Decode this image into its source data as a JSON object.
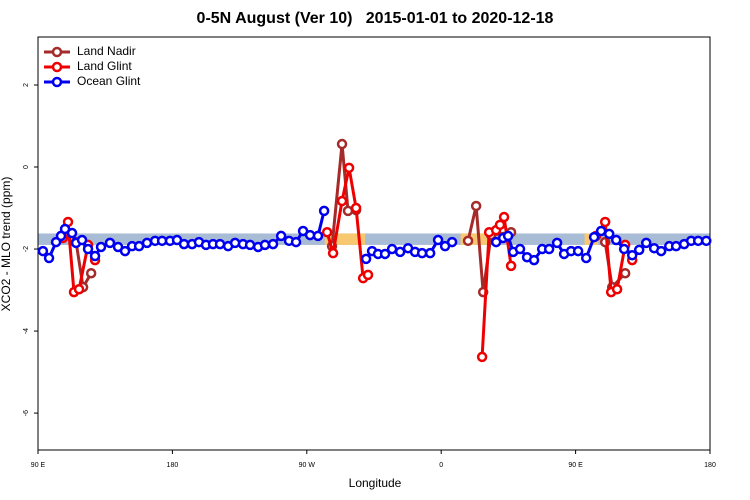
{
  "chart_data": {
    "type": "line",
    "title": "0-5N August (Ver 10)   2015-01-01 to 2020-12-18",
    "x_label": "Longitude",
    "y_label": "XCO2 - MLO trend (ppm)",
    "xlim": [
      90,
      540
    ],
    "xticks": [
      {
        "value": 90,
        "label": "90 E"
      },
      180,
      {
        "value": 270,
        "label": "90 W"
      },
      {
        "value": 360,
        "label": "0"
      },
      {
        "value": 450,
        "label": "90 E"
      },
      {
        "value": 540,
        "label": "180"
      }
    ],
    "ylim": [
      -6.9,
      3.17
    ],
    "yticks": [
      -6,
      -4,
      -2,
      0,
      2
    ],
    "legend": "top-left",
    "bands": [
      {
        "color": "#a9bcd6",
        "x": [
          90,
          540
        ],
        "y": [
          -1.9,
          -1.62
        ]
      },
      {
        "color": "#f7c870",
        "x": [
          282,
          309
        ],
        "y": [
          -1.9,
          -1.62
        ]
      },
      {
        "color": "#f7c870",
        "x": [
          373,
          393
        ],
        "y": [
          -1.9,
          -1.62
        ]
      },
      {
        "color": "#f7c870",
        "x": [
          456,
          465
        ],
        "y": [
          -1.9,
          -1.62
        ]
      }
    ],
    "series": [
      {
        "name": "Land Nadir",
        "color": "#a52a2a",
        "x": [
          115.5,
          120.2,
          125.6,
          null,
          286.9,
          293.6,
          297.6,
          303.0,
          null,
          378.0,
          383.4,
          388.1,
          393.4,
          406.8,
          null,
          469.8,
          474.5,
          483.2
        ],
        "values": [
          -1.83,
          -2.93,
          -2.59,
          null,
          -1.93,
          0.56,
          -1.07,
          -1.05,
          null,
          -1.8,
          -0.95,
          -3.05,
          -1.66,
          -1.59,
          null,
          -1.83,
          -2.93,
          -2.59
        ]
      },
      {
        "name": "Land Glint",
        "color": "#ee0000",
        "x": [
          106.7,
          110.1,
          114.1,
          117.5,
          123.5,
          128.2,
          null,
          283.6,
          287.6,
          293.6,
          298.3,
          303.0,
          307.7,
          311.0,
          null,
          387.4,
          392.1,
          396.8,
          399.4,
          402.1,
          406.8,
          null,
          463.7,
          469.8,
          473.8,
          477.8,
          483.2,
          487.9
        ],
        "values": [
          -1.73,
          -1.34,
          -3.05,
          -2.98,
          -1.9,
          -2.27,
          null,
          -1.59,
          -2.1,
          -0.83,
          -0.02,
          -1.0,
          -2.71,
          -2.63,
          null,
          -4.63,
          -1.59,
          -1.54,
          -1.41,
          -1.22,
          -2.41,
          null,
          -1.68,
          -1.34,
          -3.05,
          -2.98,
          -1.9,
          -2.27
        ]
      },
      {
        "name": "Ocean Glint",
        "color": "#0000ee",
        "x": [
          93.3,
          97.4,
          102.1,
          105.4,
          108.1,
          112.8,
          115.5,
          119.5,
          123.5,
          128.2,
          132.2,
          138.2,
          143.6,
          148.3,
          153.0,
          157.7,
          163.0,
          168.4,
          173.1,
          178.4,
          183.1,
          187.8,
          193.2,
          197.8,
          202.5,
          207.2,
          211.9,
          217.3,
          222.0,
          227.3,
          232.0,
          237.4,
          242.0,
          247.4,
          252.8,
          258.1,
          262.8,
          267.5,
          272.2,
          277.5,
          281.6,
          null,
          309.7,
          313.7,
          317.7,
          322.4,
          327.1,
          332.5,
          337.8,
          342.5,
          347.2,
          352.6,
          357.9,
          362.6,
          367.3,
          null,
          396.8,
          401.5,
          404.8,
          408.2,
          412.8,
          417.5,
          422.2,
          427.6,
          432.3,
          437.6,
          442.3,
          447.0,
          451.7,
          457.1,
          462.4,
          467.1,
          472.5,
          477.2,
          482.5,
          487.9,
          492.6,
          497.3,
          502.6,
          507.3,
          512.7,
          517.3,
          522.7,
          527.4,
          532.1,
          537.5
        ],
        "values": [
          -2.05,
          -2.22,
          -1.83,
          -1.68,
          -1.51,
          -1.61,
          -1.85,
          -1.78,
          -2.0,
          -2.17,
          -1.95,
          -1.85,
          -1.95,
          -2.05,
          -1.93,
          -1.93,
          -1.85,
          -1.8,
          -1.8,
          -1.8,
          -1.78,
          -1.88,
          -1.88,
          -1.83,
          -1.9,
          -1.88,
          -1.88,
          -1.93,
          -1.85,
          -1.88,
          -1.9,
          -1.95,
          -1.9,
          -1.88,
          -1.68,
          -1.8,
          -1.83,
          -1.56,
          -1.66,
          -1.68,
          -1.07,
          null,
          -2.24,
          -2.05,
          -2.12,
          -2.12,
          -2.0,
          -2.07,
          -1.98,
          -2.07,
          -2.1,
          -2.1,
          -1.78,
          -1.93,
          -1.83,
          null,
          -1.83,
          -1.73,
          -1.68,
          -2.07,
          -2.0,
          -2.2,
          -2.27,
          -2.0,
          -2.0,
          -1.85,
          -2.12,
          -2.05,
          -2.05,
          -2.22,
          -1.71,
          -1.56,
          -1.63,
          -1.78,
          -2.0,
          -2.15,
          -2.02,
          -1.85,
          -1.98,
          -2.05,
          -1.93,
          -1.93,
          -1.88,
          -1.8,
          -1.8,
          -1.8
        ]
      }
    ]
  }
}
